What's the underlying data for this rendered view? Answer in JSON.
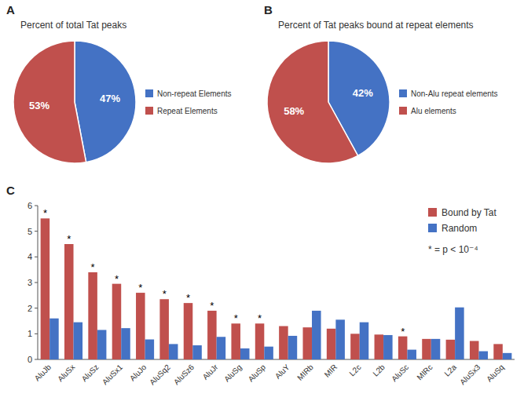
{
  "chart_data": [
    {
      "type": "pie",
      "title": "Percent of total Tat peaks",
      "annotations": [
        {
          "text": "A"
        }
      ],
      "categories": [
        "Non-repeat Elements",
        "Repeat Elements"
      ],
      "values": [
        47,
        53
      ],
      "value_labels": [
        "47%",
        "53%"
      ],
      "colors": [
        "#4472c4",
        "#c0504d"
      ],
      "data_labels": true,
      "legend": "right"
    },
    {
      "type": "pie",
      "title": "Percent of Tat peaks bound at repeat elements",
      "annotations": [
        {
          "text": "B"
        }
      ],
      "categories": [
        "Non-Alu repeat elements",
        "Alu elements"
      ],
      "values": [
        42,
        58
      ],
      "value_labels": [
        "42%",
        "58%"
      ],
      "colors": [
        "#4472c4",
        "#c0504d"
      ],
      "data_labels": true,
      "legend": "right"
    },
    {
      "type": "bar",
      "annotations": [
        {
          "text": "C"
        },
        {
          "text": "* = p < 10⁻⁴"
        }
      ],
      "categories": [
        "AluJb",
        "AluSx",
        "AluSz",
        "AluSx1",
        "AluJo",
        "AluSq2",
        "AluSz6",
        "AluJr",
        "AluSg",
        "AluSp",
        "AluY",
        "MIRb",
        "MIR",
        "L2c",
        "L2b",
        "AluSc",
        "MIRc",
        "L2a",
        "AluSx3",
        "AluSq"
      ],
      "series": [
        {
          "name": "Bound by Tat",
          "color": "#c0504d",
          "values": [
            5.5,
            4.5,
            3.4,
            2.95,
            2.6,
            2.35,
            2.2,
            1.9,
            1.4,
            1.4,
            1.3,
            1.25,
            1.2,
            1.0,
            0.97,
            0.9,
            0.8,
            0.77,
            0.72,
            0.6
          ],
          "significant": [
            true,
            true,
            true,
            true,
            true,
            true,
            true,
            true,
            true,
            true,
            false,
            false,
            false,
            false,
            false,
            true,
            false,
            false,
            false,
            false
          ],
          "significance_label": "*"
        },
        {
          "name": "Random",
          "color": "#4472c4",
          "values": [
            1.6,
            1.45,
            1.15,
            1.22,
            0.78,
            0.6,
            0.55,
            0.88,
            0.43,
            0.5,
            0.92,
            1.9,
            1.55,
            1.45,
            0.95,
            0.38,
            0.8,
            2.03,
            0.32,
            0.25
          ]
        }
      ],
      "ylim": [
        0,
        6
      ],
      "yticks": [
        0,
        1,
        2,
        3,
        4,
        5,
        6
      ],
      "legend": "upper right",
      "grid": false
    }
  ]
}
